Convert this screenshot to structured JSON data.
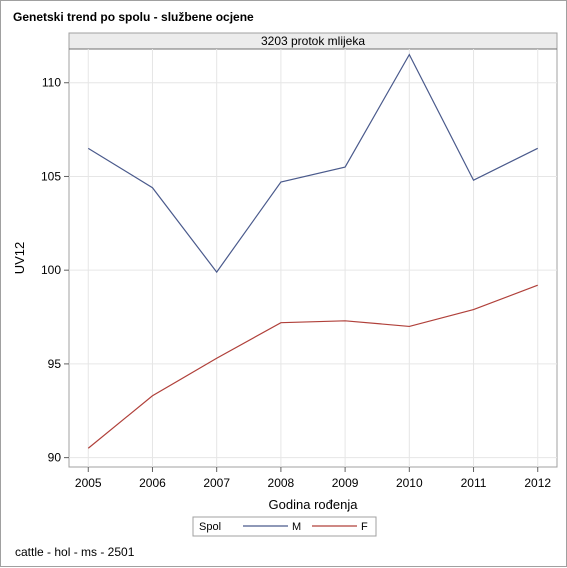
{
  "title": "Genetski trend po spolu - službene ocjene",
  "footnote": "cattle - hol - ms - 2501",
  "chart_data": {
    "type": "line",
    "panel_header": "3203 protok mlijeka",
    "xlabel": "Godina rođenja",
    "ylabel": "UV12",
    "x": [
      2005,
      2006,
      2007,
      2008,
      2009,
      2010,
      2011,
      2012
    ],
    "xlim": [
      2004.7,
      2012.3
    ],
    "ylim": [
      89.5,
      111.8
    ],
    "yticks": [
      90,
      95,
      100,
      105,
      110
    ],
    "grid": true,
    "legend_title": "Spol",
    "legend_position": "bottom",
    "series": [
      {
        "name": "M",
        "color": "#4a5a8c",
        "values": [
          106.5,
          104.4,
          99.9,
          104.7,
          105.5,
          111.5,
          104.8,
          106.5
        ]
      },
      {
        "name": "F",
        "color": "#b0403a",
        "values": [
          90.5,
          93.3,
          95.3,
          97.2,
          97.3,
          97.0,
          97.9,
          99.2
        ]
      }
    ]
  }
}
